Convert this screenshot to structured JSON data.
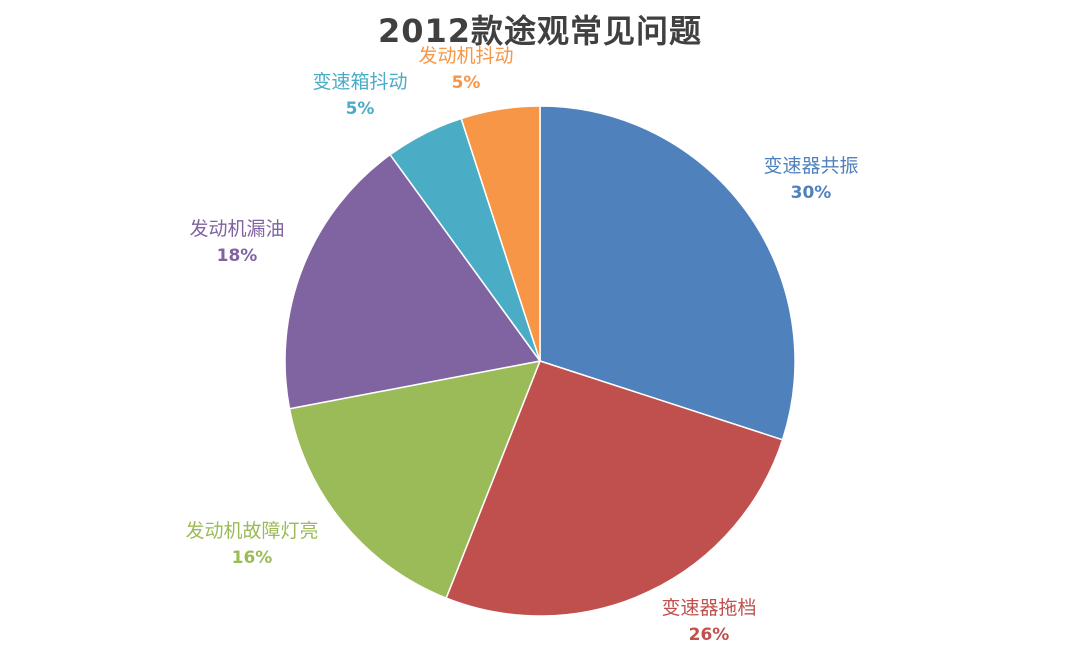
{
  "chart_data": {
    "type": "pie",
    "title": "2012款途观常见问题",
    "slices": [
      {
        "label": "变速器共振",
        "value": 30,
        "value_label": "30%",
        "color": "#4F81BD"
      },
      {
        "label": "变速器拖档",
        "value": 26,
        "value_label": "26%",
        "color": "#C0504D"
      },
      {
        "label": "发动机故障灯亮",
        "value": 16,
        "value_label": "16%",
        "color": "#9BBB59"
      },
      {
        "label": "发动机漏油",
        "value": 18,
        "value_label": "18%",
        "color": "#8064A2"
      },
      {
        "label": "变速箱抖动",
        "value": 5,
        "value_label": "5%",
        "color": "#4BACC6"
      },
      {
        "label": "发动机抖动",
        "value": 5,
        "value_label": "5%",
        "color": "#F79646"
      }
    ],
    "start_angle": "12 o'clock",
    "direction": "clockwise",
    "legend": "none"
  }
}
